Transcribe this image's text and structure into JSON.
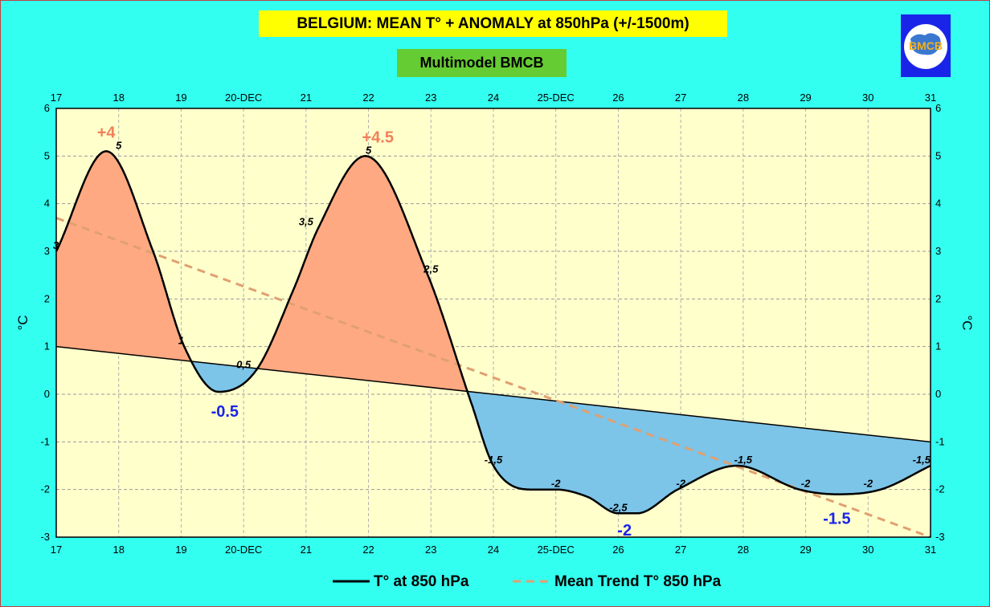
{
  "title": "BELGIUM:  MEAN T° + ANOMALY at 850hPa (+/-1500m)",
  "subtitle": "Multimodel BMCB",
  "logo": {
    "text": "BMCB",
    "icon": "bmcb-logo-icon"
  },
  "colors": {
    "background": "#33FFF0",
    "plot_background": "#FFFFCC",
    "warm_fill": "#FFA982",
    "cold_fill": "#7CC4E8",
    "temperature_line": "#000000",
    "trend_line": "#E0A070",
    "warm_label": "#F0805A",
    "cold_label": "#1A24E8"
  },
  "chart_data": {
    "type": "line",
    "title": "BELGIUM:  MEAN T° + ANOMALY at 850hPa (+/-1500m)",
    "subtitle": "Multimodel BMCB",
    "xlabel": "",
    "ylabel": "°C",
    "ylabel_right": "°C",
    "xlim": [
      17,
      31
    ],
    "ylim": [
      -3,
      6
    ],
    "y_ticks": [
      6,
      5,
      4,
      3,
      2,
      1,
      0,
      -1,
      -2,
      -3
    ],
    "y_tick_labels": [
      "6",
      "5",
      "4",
      "3",
      "2",
      "1",
      "0",
      "-1",
      "-2",
      "-3"
    ],
    "x_ticks": [
      17,
      18,
      19,
      20,
      21,
      22,
      23,
      24,
      25,
      26,
      27,
      28,
      29,
      30,
      31
    ],
    "x_tick_labels": [
      "17",
      "18",
      "19",
      "20-DEC",
      "21",
      "22",
      "23",
      "24",
      "25-DEC",
      "26",
      "27",
      "28",
      "29",
      "30",
      "31"
    ],
    "grid": true,
    "legend_position": "bottom",
    "series": [
      {
        "name": "T° at 850 hPa",
        "points": [
          [
            17,
            3.0
          ],
          [
            17.8,
            5.1
          ],
          [
            18.55,
            3.0
          ],
          [
            19.05,
            1.0
          ],
          [
            19.6,
            0.05
          ],
          [
            20.2,
            0.5
          ],
          [
            20.8,
            2.2
          ],
          [
            21.2,
            3.5
          ],
          [
            21.95,
            5.0
          ],
          [
            22.95,
            2.5
          ],
          [
            23.65,
            -0.2
          ],
          [
            24.0,
            -1.5
          ],
          [
            24.6,
            -2.0
          ],
          [
            25.0,
            -2.0
          ],
          [
            25.5,
            -2.15
          ],
          [
            26.0,
            -2.5
          ],
          [
            26.3,
            -2.5
          ],
          [
            26.95,
            -2.0
          ],
          [
            27.9,
            -1.5
          ],
          [
            28.9,
            -2.0
          ],
          [
            29.5,
            -2.1
          ],
          [
            30.2,
            -2.0
          ],
          [
            31.0,
            -1.5
          ]
        ]
      },
      {
        "name": "Mean Trend T° 850 hPa",
        "points": [
          [
            17,
            3.7
          ],
          [
            31,
            -3.0
          ]
        ]
      },
      {
        "name": "Baseline",
        "points": [
          [
            17,
            1.0
          ],
          [
            31,
            -1.0
          ]
        ]
      }
    ],
    "data_labels": [
      {
        "x": 17.0,
        "y": 3.0,
        "text": "3"
      },
      {
        "x": 18.0,
        "y": 5.1,
        "text": "5"
      },
      {
        "x": 19.0,
        "y": 1.0,
        "text": "1"
      },
      {
        "x": 20.0,
        "y": 0.5,
        "text": "0,5"
      },
      {
        "x": 21.0,
        "y": 3.5,
        "text": "3,5"
      },
      {
        "x": 22.0,
        "y": 5.0,
        "text": "5"
      },
      {
        "x": 23.0,
        "y": 2.5,
        "text": "2,5"
      },
      {
        "x": 24.0,
        "y": -1.5,
        "text": "-1,5"
      },
      {
        "x": 25.0,
        "y": -2.0,
        "text": "-2"
      },
      {
        "x": 26.0,
        "y": -2.5,
        "text": "-2,5"
      },
      {
        "x": 27.0,
        "y": -2.0,
        "text": "-2"
      },
      {
        "x": 28.0,
        "y": -1.5,
        "text": "-1,5"
      },
      {
        "x": 29.0,
        "y": -2.0,
        "text": "-2"
      },
      {
        "x": 30.0,
        "y": -2.0,
        "text": "-2"
      },
      {
        "x": 31.0,
        "y": -1.5,
        "text": "-1,5"
      }
    ],
    "anomaly_labels": [
      {
        "x": 17.8,
        "y": 5.5,
        "text": "+4",
        "kind": "warm"
      },
      {
        "x": 22.15,
        "y": 5.4,
        "text": "+4.5",
        "kind": "warm"
      },
      {
        "x": 19.7,
        "y": -0.35,
        "text": "-0.5",
        "kind": "cold"
      },
      {
        "x": 26.1,
        "y": -2.85,
        "text": "-2",
        "kind": "cold"
      },
      {
        "x": 29.5,
        "y": -2.6,
        "text": "-1.5",
        "kind": "cold"
      }
    ]
  }
}
